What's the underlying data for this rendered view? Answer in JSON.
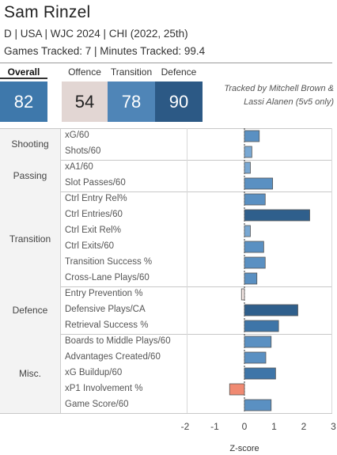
{
  "header": {
    "name": "Sam Rinzel",
    "info_line": "D | USA | WJC 2024 | CHI (2022, 25th)",
    "tracking_line": "Games Tracked: 7 | Minutes Tracked: 99.4",
    "tracked_by": "Tracked by Mitchell Brown & Lassi Alanen (5v5 only)"
  },
  "scores": [
    {
      "label": "Overall",
      "value": "82",
      "color": "#3e78ab",
      "text_color": "#ffffff"
    },
    {
      "label": "Offence",
      "value": "54",
      "color": "#e2d6d3",
      "text_color": "#222222"
    },
    {
      "label": "Transition",
      "value": "78",
      "color": "#4f85b7",
      "text_color": "#ffffff"
    },
    {
      "label": "Defence",
      "value": "90",
      "color": "#2c5985",
      "text_color": "#ffffff"
    }
  ],
  "chart_data": {
    "type": "bar",
    "orientation": "horizontal",
    "xlabel": "Z-score",
    "xlim": [
      -2.5,
      3.2
    ],
    "xticks": [
      -2,
      -1,
      0,
      1,
      2,
      3
    ],
    "zero_line": "dashed",
    "groups": [
      {
        "name": "Shooting",
        "metrics": [
          {
            "label": "xG/60",
            "value": 0.5
          },
          {
            "label": "Shots/60",
            "value": 0.25
          }
        ]
      },
      {
        "name": "Passing",
        "metrics": [
          {
            "label": "xA1/60",
            "value": 0.2
          },
          {
            "label": "Slot Passes/60",
            "value": 0.95
          }
        ]
      },
      {
        "name": "Transition",
        "metrics": [
          {
            "label": "Ctrl Entry Rel%",
            "value": 0.7
          },
          {
            "label": "Ctrl Entries/60",
            "value": 2.2
          },
          {
            "label": "Ctrl Exit Rel%",
            "value": 0.2
          },
          {
            "label": "Ctrl Exits/60",
            "value": 0.65
          },
          {
            "label": "Transition Success %",
            "value": 0.7
          },
          {
            "label": "Cross-Lane Plays/60",
            "value": 0.42
          }
        ]
      },
      {
        "name": "Defence",
        "metrics": [
          {
            "label": "Entry Prevention %",
            "value": -0.1
          },
          {
            "label": "Defensive Plays/CA",
            "value": 1.8
          },
          {
            "label": "Retrieval Success %",
            "value": 1.15
          }
        ]
      },
      {
        "name": "Misc.",
        "metrics": [
          {
            "label": "Boards to Middle Plays/60",
            "value": 0.9
          },
          {
            "label": "Advantages Created/60",
            "value": 0.72
          },
          {
            "label": "xG Buildup/60",
            "value": 1.05
          },
          {
            "label": "xP1 Involvement %",
            "value": -0.5
          },
          {
            "label": "Game Score/60",
            "value": 0.9
          }
        ]
      }
    ]
  }
}
